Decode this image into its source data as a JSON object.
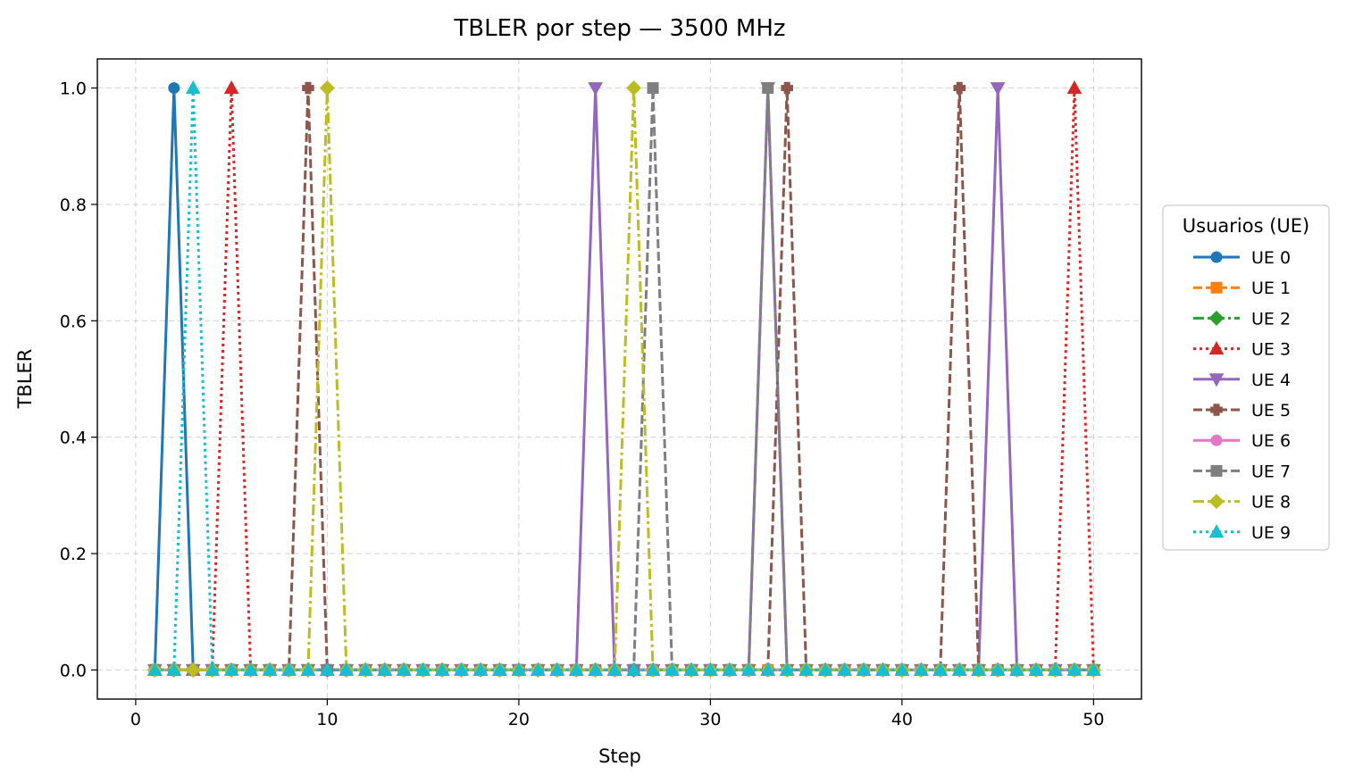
{
  "chart_data": {
    "type": "line",
    "title": "TBLER por step — 3500 MHz",
    "xlabel": "Step",
    "ylabel": "TBLER",
    "xlim": [
      -2,
      52.5
    ],
    "ylim": [
      -0.05,
      1.05
    ],
    "xticks": [
      0,
      10,
      20,
      30,
      40,
      50
    ],
    "yticks": [
      0.0,
      0.2,
      0.4,
      0.6,
      0.8,
      1.0
    ],
    "xtick_labels": [
      "0",
      "10",
      "20",
      "30",
      "40",
      "50"
    ],
    "ytick_labels": [
      "0.0",
      "0.2",
      "0.4",
      "0.6",
      "0.8",
      "1.0"
    ],
    "grid": true,
    "legend": {
      "title": "Usuarios (UE)",
      "position": "outside-right"
    },
    "x_range": [
      1,
      50
    ],
    "series": [
      {
        "name": "UE 0",
        "color": "#1f77b4",
        "marker": "circle",
        "linestyle": "solid",
        "peaks": [
          2
        ]
      },
      {
        "name": "UE 1",
        "color": "#ff7f0e",
        "marker": "square",
        "linestyle": "dashed",
        "peaks": []
      },
      {
        "name": "UE 2",
        "color": "#2ca02c",
        "marker": "diamond",
        "linestyle": "dashdot",
        "peaks": []
      },
      {
        "name": "UE 3",
        "color": "#d62728",
        "marker": "triangle-up",
        "linestyle": "dotted",
        "peaks": [
          5,
          49
        ]
      },
      {
        "name": "UE 4",
        "color": "#9467bd",
        "marker": "triangle-down",
        "linestyle": "solid",
        "peaks": [
          24,
          33,
          45
        ]
      },
      {
        "name": "UE 5",
        "color": "#8c564b",
        "marker": "plus",
        "linestyle": "dashed",
        "peaks": [
          9,
          34,
          43
        ]
      },
      {
        "name": "UE 6",
        "color": "#e377c2",
        "marker": "circle",
        "linestyle": "solid",
        "peaks": []
      },
      {
        "name": "UE 7",
        "color": "#7f7f7f",
        "marker": "square",
        "linestyle": "dashed",
        "peaks": [
          27,
          33
        ]
      },
      {
        "name": "UE 8",
        "color": "#bcbd22",
        "marker": "diamond",
        "linestyle": "dashdot",
        "peaks": [
          10,
          26
        ]
      },
      {
        "name": "UE 9",
        "color": "#17becf",
        "marker": "triangle-up",
        "linestyle": "dotted",
        "peaks": [
          3
        ]
      }
    ]
  }
}
